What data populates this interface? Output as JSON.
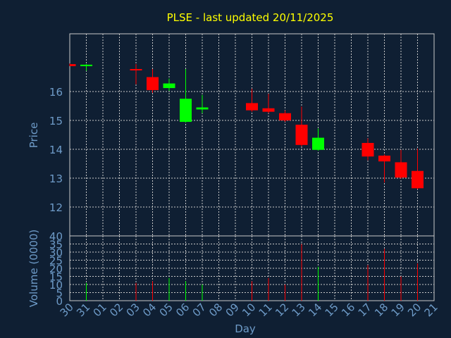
{
  "chart_data": {
    "type": "candlestick",
    "title": "PLSE - last updated 20/11/2025",
    "xlabel": "Day",
    "colors": {
      "up": "#00ff00",
      "down": "#ff0000",
      "background": "#0f1f33",
      "grid": "#c8c8c8",
      "text": "#6e9bc8",
      "title": "#ffff00"
    },
    "x_ticks": [
      "30",
      "31",
      "01",
      "02",
      "03",
      "04",
      "05",
      "06",
      "07",
      "08",
      "09",
      "10",
      "11",
      "12",
      "13",
      "14",
      "15",
      "16",
      "17",
      "18",
      "19",
      "20",
      "21"
    ],
    "price_panel": {
      "ylabel": "Price",
      "yticks": [
        12,
        13,
        14,
        15,
        16
      ],
      "ylim": [
        11.0,
        18.0
      ],
      "grid": true
    },
    "volume_panel": {
      "ylabel": "Volume (0000)",
      "yticks": [
        0,
        5,
        10,
        15,
        20,
        25,
        30,
        35,
        40
      ],
      "ylim": [
        0,
        40
      ],
      "grid": true
    },
    "candles": [
      {
        "day": "30",
        "open": 16.95,
        "high": 16.97,
        "low": 16.88,
        "close": 16.88,
        "volume": 0
      },
      {
        "day": "31",
        "open": 16.88,
        "high": 16.95,
        "low": 16.72,
        "close": 16.93,
        "volume": 11
      },
      {
        "day": "03",
        "open": 16.78,
        "high": 16.95,
        "low": 16.25,
        "close": 16.75,
        "volume": 11
      },
      {
        "day": "04",
        "open": 16.5,
        "high": 16.78,
        "low": 15.95,
        "close": 16.05,
        "volume": 12
      },
      {
        "day": "05",
        "open": 16.12,
        "high": 16.45,
        "low": 16.02,
        "close": 16.28,
        "volume": 14
      },
      {
        "day": "06",
        "open": 14.95,
        "high": 16.78,
        "low": 14.92,
        "close": 15.75,
        "volume": 12
      },
      {
        "day": "07",
        "open": 15.38,
        "high": 15.88,
        "low": 15.25,
        "close": 15.45,
        "volume": 10
      },
      {
        "day": "10",
        "open": 15.6,
        "high": 16.1,
        "low": 15.3,
        "close": 15.35,
        "volume": 12
      },
      {
        "day": "11",
        "open": 15.42,
        "high": 15.92,
        "low": 15.25,
        "close": 15.3,
        "volume": 14
      },
      {
        "day": "12",
        "open": 15.25,
        "high": 15.35,
        "low": 14.95,
        "close": 15.0,
        "volume": 10
      },
      {
        "day": "13",
        "open": 14.85,
        "high": 15.48,
        "low": 14.1,
        "close": 14.15,
        "volume": 35
      },
      {
        "day": "14",
        "open": 13.98,
        "high": 14.72,
        "low": 13.95,
        "close": 14.4,
        "volume": 21
      },
      {
        "day": "17",
        "open": 14.22,
        "high": 14.38,
        "low": 13.62,
        "close": 13.75,
        "volume": 22
      },
      {
        "day": "18",
        "open": 13.78,
        "high": 13.82,
        "low": 12.85,
        "close": 13.58,
        "volume": 32
      },
      {
        "day": "19",
        "open": 13.55,
        "high": 13.98,
        "low": 12.98,
        "close": 13.02,
        "volume": 15
      },
      {
        "day": "20",
        "open": 13.25,
        "high": 14.02,
        "low": 12.62,
        "close": 12.65,
        "volume": 23
      }
    ]
  }
}
